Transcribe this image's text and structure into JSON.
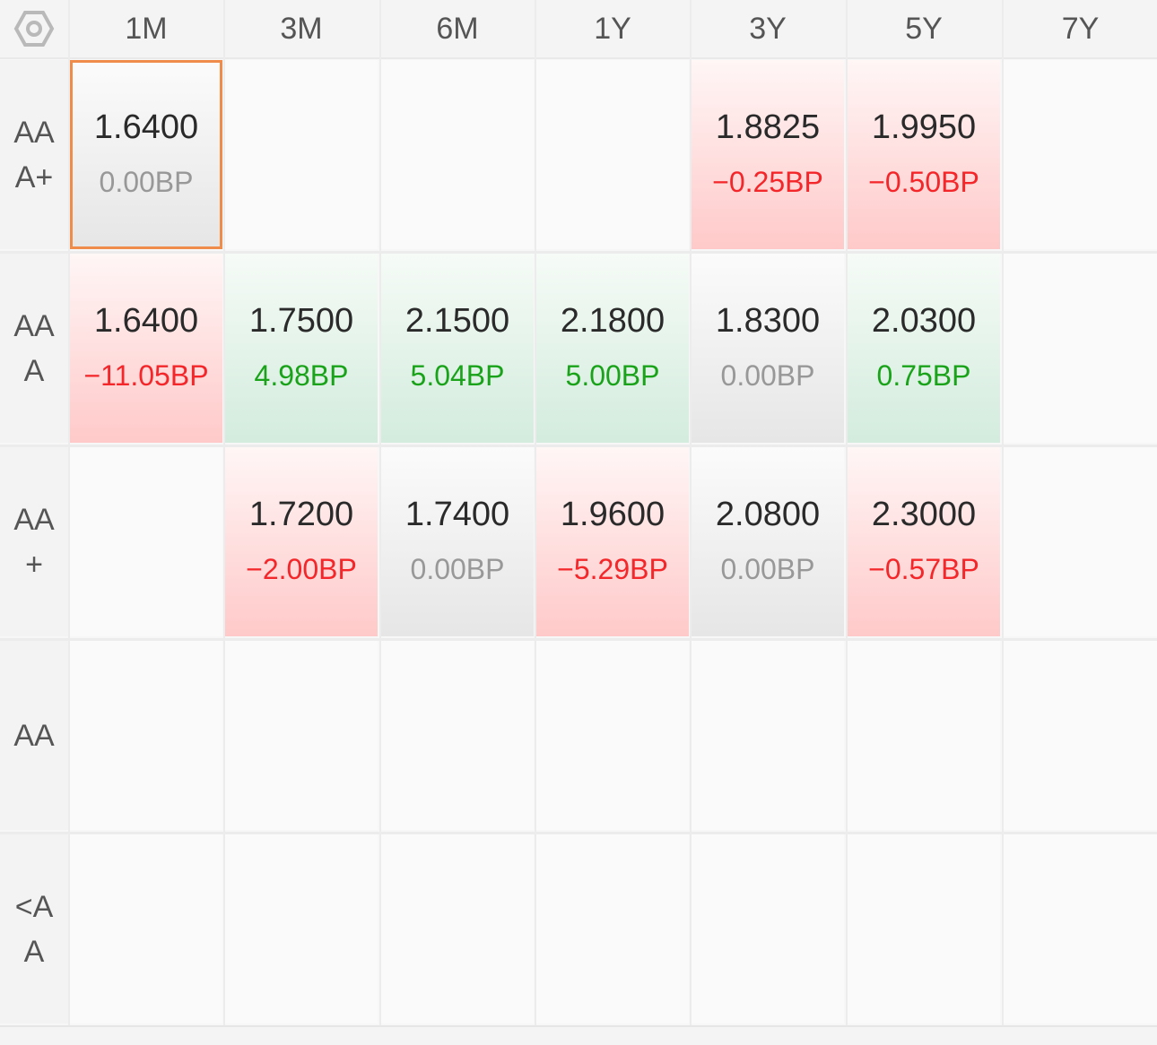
{
  "settings_icon": "hexagon-gear-icon",
  "columns": [
    "1M",
    "3M",
    "6M",
    "1Y",
    "3Y",
    "5Y",
    "7Y"
  ],
  "rows": [
    {
      "label": "AAA+",
      "cells": [
        {
          "value": "1.6400",
          "change": "0.00BP",
          "trend": "neutral",
          "selected": true
        },
        null,
        null,
        null,
        {
          "value": "1.8825",
          "change": "−0.25BP",
          "trend": "neg"
        },
        {
          "value": "1.9950",
          "change": "−0.50BP",
          "trend": "neg"
        },
        null
      ]
    },
    {
      "label": "AAA",
      "cells": [
        {
          "value": "1.6400",
          "change": "−11.05BP",
          "trend": "neg"
        },
        {
          "value": "1.7500",
          "change": "4.98BP",
          "trend": "pos"
        },
        {
          "value": "2.1500",
          "change": "5.04BP",
          "trend": "pos"
        },
        {
          "value": "2.1800",
          "change": "5.00BP",
          "trend": "pos"
        },
        {
          "value": "1.8300",
          "change": "0.00BP",
          "trend": "neutral"
        },
        {
          "value": "2.0300",
          "change": "0.75BP",
          "trend": "pos"
        },
        null
      ]
    },
    {
      "label": "AA+",
      "cells": [
        null,
        {
          "value": "1.7200",
          "change": "−2.00BP",
          "trend": "neg"
        },
        {
          "value": "1.7400",
          "change": "0.00BP",
          "trend": "neutral"
        },
        {
          "value": "1.9600",
          "change": "−5.29BP",
          "trend": "neg"
        },
        {
          "value": "2.0800",
          "change": "0.00BP",
          "trend": "neutral"
        },
        {
          "value": "2.3000",
          "change": "−0.57BP",
          "trend": "neg"
        },
        null
      ]
    },
    {
      "label": "AA",
      "cells": [
        null,
        null,
        null,
        null,
        null,
        null,
        null
      ]
    },
    {
      "label": "<AA",
      "cells": [
        null,
        null,
        null,
        null,
        null,
        null,
        null
      ]
    }
  ],
  "colors": {
    "negative": "#f3262a",
    "positive": "#1aa31a",
    "zero": "#989898",
    "selected_border": "#f08c4b"
  }
}
